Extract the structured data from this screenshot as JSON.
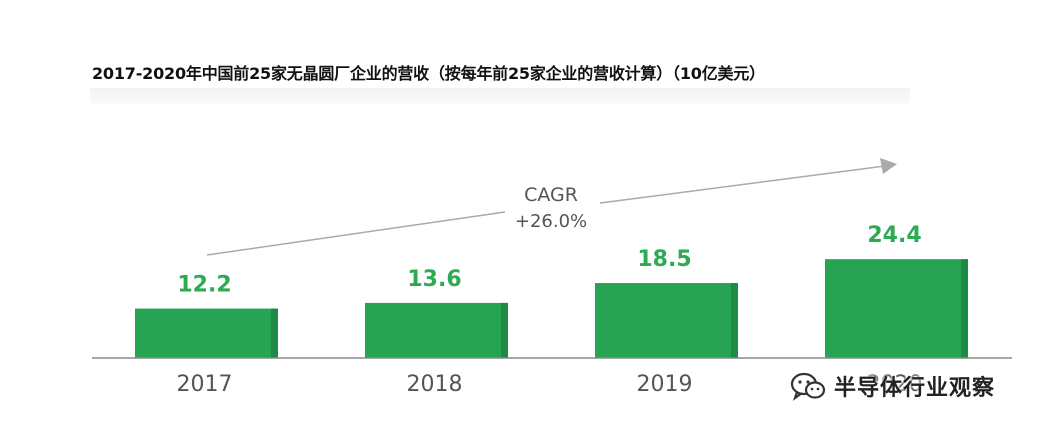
{
  "title": "2017-2020年中国前25家无晶圆厂企业的营收（按每年前25家企业的营收计算）（10亿美元）",
  "cagr": {
    "label": "CAGR",
    "value": "+26.0%"
  },
  "watermark": {
    "text": "半导体行业观察",
    "icon": "wechat-icon"
  },
  "colors": {
    "bar": "#27a354",
    "bar_shadow": "#1e8a45",
    "value_label": "#2eaa52",
    "axis": "#888888",
    "arrow": "#aaaaaa",
    "tick": "#555555"
  },
  "chart_data": {
    "type": "bar",
    "title": "2017-2020年中国前25家无晶圆厂企业的营收（按每年前25家企业的营收计算）（10亿美元）",
    "categories": [
      "2017",
      "2018",
      "2019",
      "2020"
    ],
    "values": [
      12.2,
      13.6,
      18.5,
      24.4
    ],
    "value_labels": [
      "12.2",
      "13.6",
      "18.5",
      "24.4"
    ],
    "xlabel": "",
    "ylabel": "",
    "ylim": [
      0,
      30
    ],
    "grid": false,
    "legend": "none"
  }
}
